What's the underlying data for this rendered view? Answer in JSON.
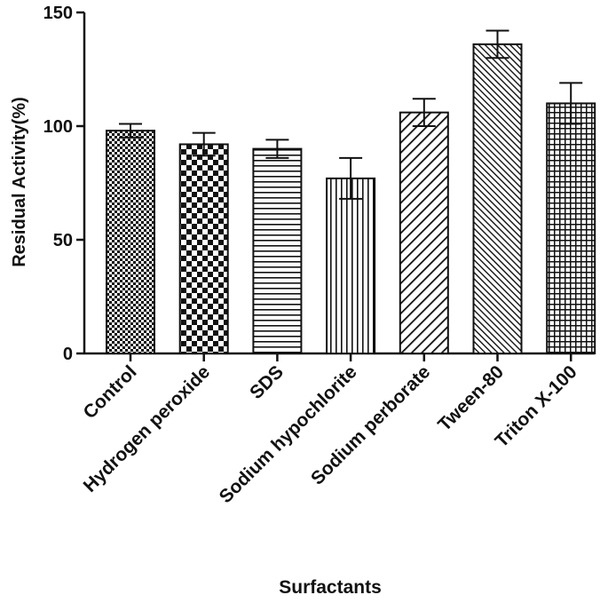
{
  "chart_data": {
    "type": "bar",
    "title": "",
    "xlabel": "Surfactants",
    "ylabel": "Residual  Activity(%)",
    "ylim": [
      0,
      150
    ],
    "yticks": [
      0,
      50,
      100,
      150
    ],
    "categories": [
      "Control",
      "Hydrogen peroxide",
      "SDS",
      "Sodium hypochlorite",
      "Sodium perborate",
      "Tween-80",
      "Triton X-100"
    ],
    "values": [
      98,
      92,
      90,
      77,
      106,
      136,
      110
    ],
    "errors": [
      3,
      5,
      4,
      9,
      6,
      6,
      9
    ],
    "patterns": [
      "fine-check",
      "checkerboard",
      "horizontal",
      "vertical",
      "diagonal-wide",
      "diagonal-dense",
      "grid"
    ],
    "colors": {
      "bar_stroke": "#111111",
      "pattern": "#111111",
      "background": "#ffffff"
    }
  }
}
